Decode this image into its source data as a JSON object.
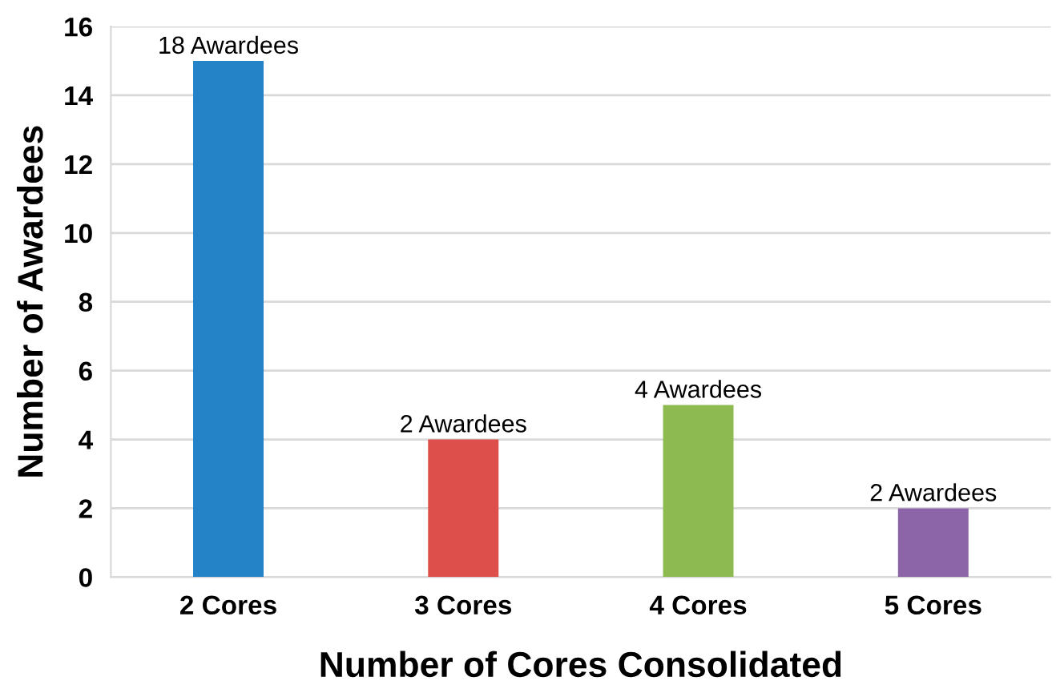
{
  "chart_data": {
    "type": "bar",
    "xlabel": "Number of Cores Consolidated",
    "ylabel": "Number of Awardees",
    "categories": [
      "2 Cores",
      "3 Cores",
      "4 Cores",
      "5 Cores"
    ],
    "values": [
      15,
      4,
      5,
      2
    ],
    "colors": [
      "#2383c6",
      "#dc4f4b",
      "#8dbb52",
      "#8c64a8"
    ],
    "annotations": [
      {
        "text": "18 Awardees",
        "x": "2 Cores",
        "y": 15
      },
      {
        "text": "2 Awardees",
        "x": "3 Cores",
        "y": 4
      },
      {
        "text": "4 Awardees",
        "x": "4 Cores",
        "y": 5
      },
      {
        "text": "2 Awardees",
        "x": "5 Cores",
        "y": 2
      }
    ],
    "ylim": [
      0,
      16
    ],
    "yticks": [
      0,
      2,
      4,
      6,
      8,
      10,
      12,
      14,
      16
    ],
    "grid": "y",
    "legend": false
  }
}
